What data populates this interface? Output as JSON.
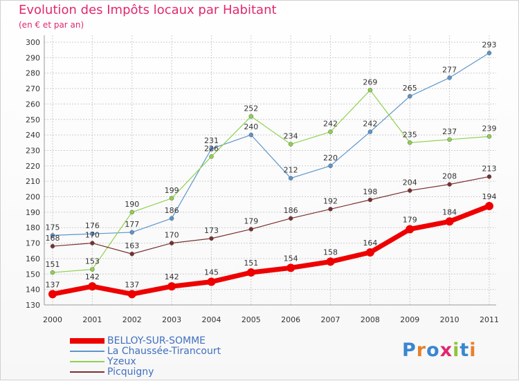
{
  "title": "Evolution des Impôts locaux par Habitant",
  "subtitle": "(en € et par an)",
  "logo": "Proxiti",
  "colors": {
    "title": "#e0286e",
    "grid": "#cccccc",
    "axis_text": "#333333"
  },
  "chart_data": {
    "type": "line",
    "title": "Evolution des Impôts locaux par Habitant",
    "subtitle": "(en € et par an)",
    "xlabel": "",
    "ylabel": "",
    "x": [
      "2000",
      "2001",
      "2002",
      "2003",
      "2004",
      "2005",
      "2006",
      "2007",
      "2008",
      "2009",
      "2010",
      "2011"
    ],
    "ylim": [
      130,
      300
    ],
    "yticks": [
      130,
      140,
      150,
      160,
      170,
      180,
      190,
      200,
      210,
      220,
      230,
      240,
      250,
      260,
      270,
      280,
      290,
      300
    ],
    "grid": true,
    "legend_position": "bottom-left",
    "series": [
      {
        "name": "BELLOY-SUR-SOMME",
        "color": "#ee0000",
        "values": [
          137,
          142,
          137,
          142,
          145,
          151,
          154,
          158,
          164,
          179,
          184,
          194
        ]
      },
      {
        "name": "La Chaussée-Tirancourt",
        "color": "#5b95cb",
        "values": [
          175,
          176,
          177,
          186,
          231,
          240,
          212,
          220,
          242,
          265,
          277,
          293
        ]
      },
      {
        "name": "Yzeux",
        "color": "#8fd14f",
        "values": [
          151,
          153,
          190,
          199,
          226,
          252,
          234,
          242,
          269,
          235,
          237,
          239
        ]
      },
      {
        "name": "Picquigny",
        "color": "#7a2f2f",
        "values": [
          168,
          170,
          163,
          170,
          173,
          179,
          186,
          192,
          198,
          204,
          208,
          213
        ]
      }
    ]
  }
}
